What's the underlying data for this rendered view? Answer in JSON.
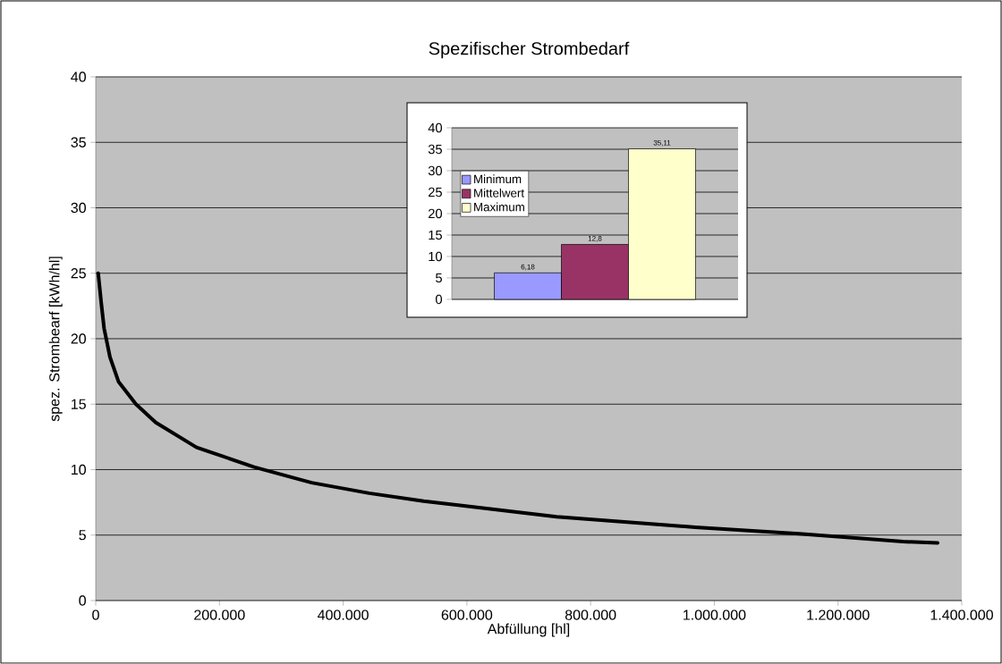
{
  "chart_data": [
    {
      "type": "line",
      "title": "Spezifischer Strombedarf",
      "xlabel": "Abfüllung [hl]",
      "ylabel": "spez. Strombearf [kWh/hl]",
      "x": [
        4000,
        9000,
        13500,
        23000,
        37000,
        65000,
        97000,
        163000,
        256000,
        349000,
        442000,
        530000,
        745000,
        969000,
        1137000,
        1305000,
        1361000
      ],
      "values": [
        25,
        22.7,
        20.8,
        18.6,
        16.7,
        15.0,
        13.6,
        11.7,
        10.2,
        9.0,
        8.2,
        7.6,
        6.4,
        5.6,
        5.1,
        4.5,
        4.4
      ],
      "color": "#000000",
      "xlim": [
        0,
        1400000
      ],
      "xticks": [
        0,
        {
          "value": 200000,
          "label": "200.000"
        },
        {
          "value": 400000,
          "label": "400.000"
        },
        {
          "value": 600000,
          "label": "600.000"
        },
        {
          "value": 800000,
          "label": "800.000"
        },
        {
          "value": 1000000,
          "label": "1.000.000"
        },
        {
          "value": 1200000,
          "label": "1.200.000"
        },
        {
          "value": 1400000,
          "label": "1.400.000"
        }
      ],
      "ylim": [
        0,
        40
      ],
      "yticks": [
        0,
        5,
        10,
        15,
        20,
        25,
        30,
        35,
        40
      ],
      "grid": "y"
    },
    {
      "type": "bar",
      "categories": [
        null
      ],
      "series": [
        {
          "name": "Minimum",
          "color": "#9999ff",
          "values": [
            6.18
          ],
          "value_labels": [
            "6,18"
          ]
        },
        {
          "name": "Mittelwert",
          "color": "#993366",
          "values": [
            12.8
          ],
          "value_labels": [
            "12,8"
          ]
        },
        {
          "name": "Maximum",
          "color": "#ffffcc",
          "values": [
            35.11
          ],
          "value_labels": [
            "35,11"
          ]
        }
      ],
      "ylim": [
        0,
        40
      ],
      "yticks": [
        0,
        5,
        10,
        15,
        20,
        25,
        30,
        35,
        40
      ],
      "grid": "y",
      "legend": "left"
    }
  ]
}
